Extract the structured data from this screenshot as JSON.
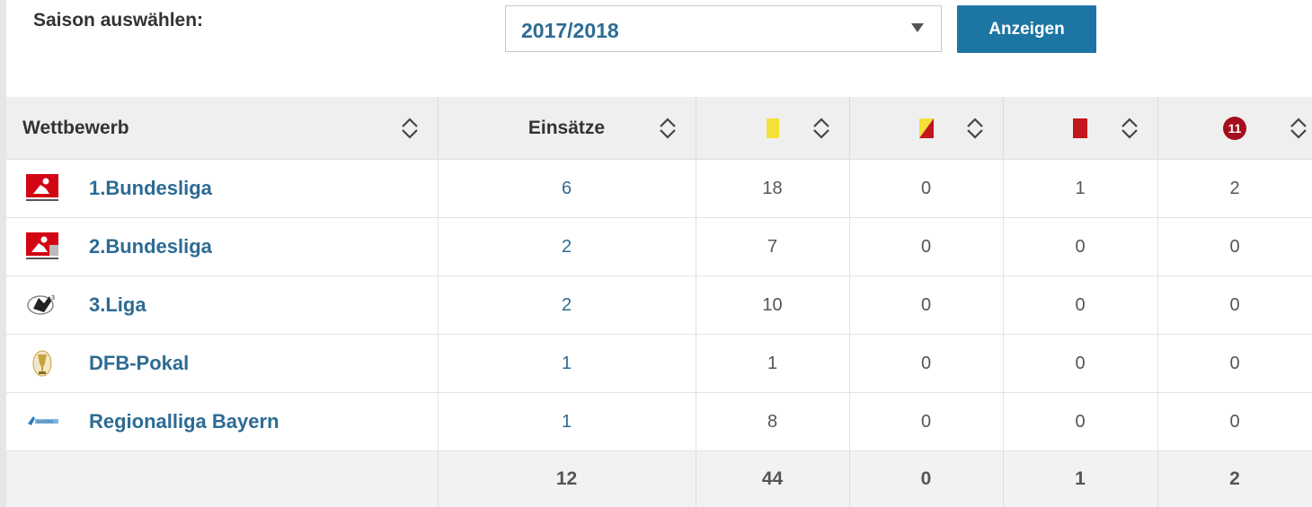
{
  "season": {
    "label": "Saison auswählen:",
    "selected": "2017/2018",
    "button_label": "Anzeigen"
  },
  "table": {
    "headers": {
      "competition": "Wettbewerb",
      "appearances": "Einsätze",
      "yellow_icon": "yellow-card-icon",
      "yellow_red_icon": "yellow-red-card-icon",
      "red_icon": "red-card-icon",
      "penalty_icon": "penalty-icon",
      "penalty_badge": "11"
    },
    "rows": [
      {
        "logo": "bundesliga-logo",
        "competition": "1.Bundesliga",
        "appearances": "6",
        "yellow": "18",
        "yellow_red": "0",
        "red": "1",
        "penalty": "2"
      },
      {
        "logo": "2-bundesliga-logo",
        "competition": "2.Bundesliga",
        "appearances": "2",
        "yellow": "7",
        "yellow_red": "0",
        "red": "0",
        "penalty": "0"
      },
      {
        "logo": "3-liga-logo",
        "competition": "3.Liga",
        "appearances": "2",
        "yellow": "10",
        "yellow_red": "0",
        "red": "0",
        "penalty": "0"
      },
      {
        "logo": "dfb-pokal-logo",
        "competition": "DFB-Pokal",
        "appearances": "1",
        "yellow": "1",
        "yellow_red": "0",
        "red": "0",
        "penalty": "0"
      },
      {
        "logo": "regionalliga-bayern-logo",
        "competition": "Regionalliga Bayern",
        "appearances": "1",
        "yellow": "8",
        "yellow_red": "0",
        "red": "0",
        "penalty": "0"
      }
    ],
    "totals": {
      "appearances": "12",
      "yellow": "44",
      "yellow_red": "0",
      "red": "1",
      "penalty": "2"
    }
  },
  "colors": {
    "link": "#2d6b94",
    "button": "#1d75a3",
    "yellow_card": "#f5e03a",
    "red_card": "#c4161c",
    "penalty_badge": "#a50e1c"
  }
}
